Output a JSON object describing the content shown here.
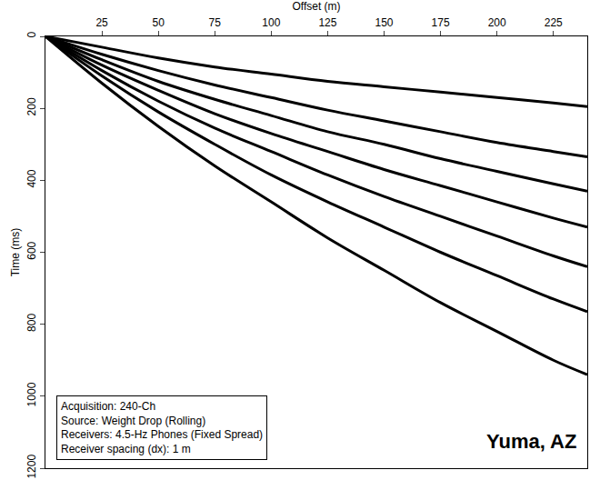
{
  "chart_data": {
    "type": "line",
    "x_label": "Offset (m)",
    "y_label": "Time (ms)",
    "x": [
      0,
      25,
      50,
      75,
      100,
      125,
      150,
      175,
      200,
      225,
      240
    ],
    "series": [
      {
        "color": "#000000",
        "values": [
          0,
          30,
          60,
          85,
          105,
          125,
          140,
          155,
          170,
          185,
          195
        ]
      },
      {
        "color": "#000000",
        "values": [
          0,
          50,
          95,
          135,
          170,
          205,
          235,
          265,
          295,
          320,
          335
        ]
      },
      {
        "color": "#000000",
        "values": [
          0,
          65,
          125,
          175,
          220,
          265,
          300,
          340,
          375,
          410,
          430
        ]
      },
      {
        "color": "#000000",
        "values": [
          0,
          80,
          150,
          215,
          270,
          320,
          370,
          415,
          460,
          505,
          530
        ]
      },
      {
        "color": "#000000",
        "values": [
          0,
          95,
          180,
          255,
          320,
          385,
          445,
          500,
          555,
          610,
          640
        ]
      },
      {
        "color": "#000000",
        "values": [
          0,
          110,
          210,
          300,
          385,
          460,
          530,
          600,
          665,
          730,
          765
        ]
      },
      {
        "color": "#000000",
        "values": [
          0,
          130,
          250,
          360,
          460,
          560,
          650,
          740,
          820,
          900,
          940
        ]
      }
    ],
    "xlim": [
      0,
      240
    ],
    "xticks": [
      25,
      50,
      75,
      100,
      125,
      150,
      175,
      200,
      225
    ],
    "ylim": [
      0,
      1200
    ],
    "yticks": [
      0,
      200,
      400,
      600,
      800,
      1000,
      1200
    ],
    "grid": false,
    "line_style": "solid",
    "annotations": [
      "Acquisition: 240-Ch",
      "Source: Weight Drop (Rolling)",
      "Receivers: 4.5-Hz Phones (Fixed Spread)",
      "Receiver spacing (dx): 1 m"
    ],
    "label": "Yuma, AZ"
  }
}
